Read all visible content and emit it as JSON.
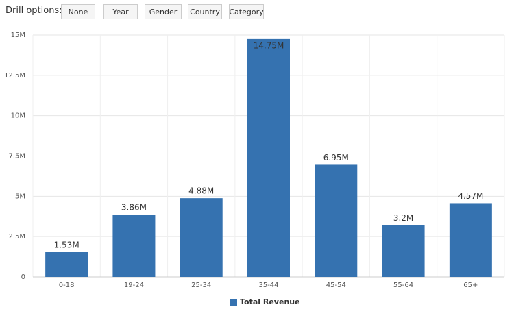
{
  "toolbar": {
    "label": "Drill options:",
    "buttons": [
      "None",
      "Year",
      "Gender",
      "Country",
      "Category"
    ]
  },
  "chart_data": {
    "type": "bar",
    "categories": [
      "0-18",
      "19-24",
      "25-34",
      "35-44",
      "45-54",
      "55-64",
      "65+"
    ],
    "series": [
      {
        "name": "Total Revenue",
        "color": "#3572b0",
        "values": [
          1530000,
          3860000,
          4880000,
          14750000,
          6950000,
          3200000,
          4570000
        ],
        "value_labels": [
          "1.53M",
          "3.86M",
          "4.88M",
          "14.75M",
          "6.95M",
          "3.2M",
          "4.57M"
        ]
      }
    ],
    "ylim": [
      0,
      15000000
    ],
    "yticks": [
      0,
      {
        "value": 2500000,
        "label": "2.5M"
      },
      {
        "value": 5000000,
        "label": "5M"
      },
      {
        "value": 7500000,
        "label": "7.5M"
      },
      {
        "value": 10000000,
        "label": "10M"
      },
      {
        "value": 12500000,
        "label": "12.5M"
      },
      {
        "value": 15000000,
        "label": "15M"
      }
    ],
    "grid": true,
    "legend": "bottom"
  }
}
